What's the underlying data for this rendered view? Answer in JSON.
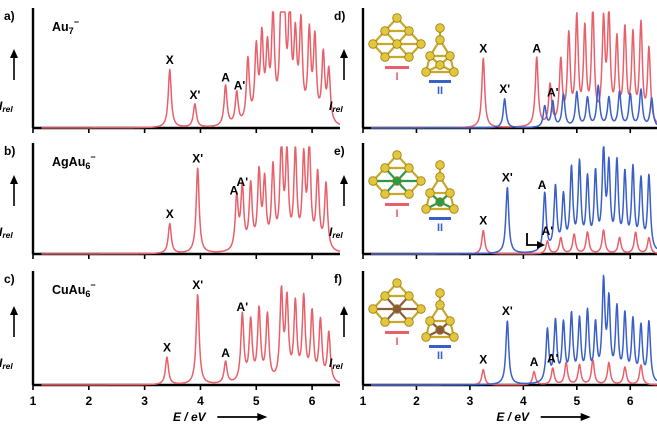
{
  "figure": {
    "x_axis_label": "E / eV",
    "x_ticks": [
      1,
      2,
      3,
      4,
      5,
      6
    ],
    "y_axis_label": "I",
    "y_axis_subscript": "rel",
    "colors": {
      "isomer_I": "#e8606a",
      "isomer_II": "#3a5fc8",
      "cluster_atom": "#e2c63c",
      "Ag_dopant": "#2a9a48",
      "Cu_dopant": "#8b5a3c"
    },
    "isomer_labels": [
      "I",
      "II"
    ]
  },
  "chart_data": [
    {
      "panel": "a)",
      "type": "line",
      "species": "Au",
      "species_sub": "7",
      "species_sup": "−",
      "xlim": [
        1,
        6.5
      ],
      "series": [
        {
          "color": "#e8606a",
          "peaks": [
            [
              3.45,
              0.5
            ],
            [
              3.9,
              0.2
            ],
            [
              4.45,
              0.35
            ],
            [
              4.65,
              0.28
            ],
            [
              4.85,
              0.55
            ],
            [
              5.0,
              0.62
            ],
            [
              5.1,
              0.7
            ],
            [
              5.2,
              0.58
            ],
            [
              5.3,
              0.88
            ],
            [
              5.45,
              0.98
            ],
            [
              5.5,
              0.85
            ],
            [
              5.6,
              0.92
            ],
            [
              5.7,
              0.68
            ],
            [
              5.8,
              0.82
            ],
            [
              5.95,
              0.75
            ],
            [
              6.05,
              0.7
            ],
            [
              6.2,
              0.58
            ],
            [
              6.3,
              0.45
            ]
          ]
        }
      ],
      "annotations": [
        {
          "text": "X",
          "x": 3.45
        },
        {
          "text": "X'",
          "x": 3.9
        },
        {
          "text": "A",
          "x": 4.45
        },
        {
          "text": "A'",
          "x": 4.7
        }
      ]
    },
    {
      "panel": "b)",
      "type": "line",
      "species": "AgAu",
      "species_sub": "6",
      "species_sup": "−",
      "xlim": [
        1,
        6.5
      ],
      "series": [
        {
          "color": "#e8606a",
          "peaks": [
            [
              3.45,
              0.28
            ],
            [
              3.95,
              0.8
            ],
            [
              4.65,
              0.5
            ],
            [
              4.75,
              0.58
            ],
            [
              4.9,
              0.6
            ],
            [
              5.05,
              0.7
            ],
            [
              5.15,
              0.62
            ],
            [
              5.3,
              0.75
            ],
            [
              5.45,
              0.95
            ],
            [
              5.55,
              0.85
            ],
            [
              5.7,
              0.9
            ],
            [
              5.85,
              0.82
            ],
            [
              5.95,
              0.95
            ],
            [
              6.1,
              0.7
            ],
            [
              6.25,
              0.62
            ]
          ]
        }
      ],
      "annotations": [
        {
          "text": "X",
          "x": 3.45
        },
        {
          "text": "X'",
          "x": 3.95
        },
        {
          "text": "A",
          "x": 4.6
        },
        {
          "text": "A'",
          "x": 4.75
        }
      ]
    },
    {
      "panel": "c)",
      "type": "line",
      "species": "CuAu",
      "species_sub": "6",
      "species_sup": "−",
      "xlim": [
        1,
        6.5
      ],
      "series": [
        {
          "color": "#e8606a",
          "peaks": [
            [
              3.4,
              0.25
            ],
            [
              3.95,
              0.82
            ],
            [
              4.45,
              0.2
            ],
            [
              4.75,
              0.62
            ],
            [
              4.9,
              0.55
            ],
            [
              5.05,
              0.65
            ],
            [
              5.2,
              0.6
            ],
            [
              5.45,
              0.8
            ],
            [
              5.55,
              0.72
            ],
            [
              5.7,
              0.7
            ],
            [
              5.85,
              0.75
            ],
            [
              6.0,
              0.62
            ],
            [
              6.15,
              0.55
            ],
            [
              6.3,
              0.45
            ]
          ]
        }
      ],
      "annotations": [
        {
          "text": "X",
          "x": 3.4
        },
        {
          "text": "X'",
          "x": 3.95
        },
        {
          "text": "A",
          "x": 4.45
        },
        {
          "text": "A'",
          "x": 4.75
        }
      ]
    },
    {
      "panel": "d)",
      "type": "line",
      "xlim": [
        1,
        6.5
      ],
      "series": [
        {
          "name": "I",
          "color": "#e8606a",
          "peaks": [
            [
              3.25,
              0.6
            ],
            [
              4.25,
              0.6
            ],
            [
              4.5,
              0.35
            ],
            [
              4.7,
              0.55
            ],
            [
              4.85,
              0.75
            ],
            [
              5.0,
              0.9
            ],
            [
              5.15,
              0.8
            ],
            [
              5.3,
              0.95
            ],
            [
              5.5,
              0.85
            ],
            [
              5.6,
              0.9
            ],
            [
              5.75,
              0.7
            ],
            [
              5.9,
              0.8
            ],
            [
              6.05,
              0.75
            ],
            [
              6.2,
              0.85
            ],
            [
              6.35,
              0.65
            ]
          ]
        },
        {
          "name": "II",
          "color": "#3a5fc8",
          "peaks": [
            [
              3.65,
              0.25
            ],
            [
              4.4,
              0.18
            ],
            [
              4.55,
              0.22
            ],
            [
              4.75,
              0.28
            ],
            [
              5.0,
              0.3
            ],
            [
              5.2,
              0.25
            ],
            [
              5.4,
              0.35
            ],
            [
              5.6,
              0.25
            ],
            [
              5.8,
              0.3
            ],
            [
              6.0,
              0.28
            ],
            [
              6.2,
              0.32
            ],
            [
              6.4,
              0.25
            ]
          ]
        }
      ],
      "annotations": [
        {
          "text": "X",
          "x": 3.25
        },
        {
          "text": "X'",
          "x": 3.65
        },
        {
          "text": "A",
          "x": 4.25
        },
        {
          "text": "A'",
          "x": 4.55
        }
      ]
    },
    {
      "panel": "e)",
      "type": "line",
      "xlim": [
        1,
        6.5
      ],
      "series": [
        {
          "name": "I",
          "color": "#e8606a",
          "peaks": [
            [
              3.25,
              0.22
            ],
            [
              4.45,
              0.12
            ],
            [
              4.7,
              0.15
            ],
            [
              4.95,
              0.18
            ],
            [
              5.2,
              0.2
            ],
            [
              5.5,
              0.22
            ],
            [
              5.8,
              0.15
            ],
            [
              6.1,
              0.2
            ],
            [
              6.35,
              0.15
            ]
          ]
        },
        {
          "name": "II",
          "color": "#3a5fc8",
          "peaks": [
            [
              3.7,
              0.62
            ],
            [
              4.4,
              0.55
            ],
            [
              4.6,
              0.6
            ],
            [
              4.75,
              0.5
            ],
            [
              4.9,
              0.75
            ],
            [
              5.05,
              0.8
            ],
            [
              5.2,
              0.65
            ],
            [
              5.35,
              0.7
            ],
            [
              5.5,
              0.9
            ],
            [
              5.6,
              0.75
            ],
            [
              5.75,
              0.8
            ],
            [
              5.9,
              0.7
            ],
            [
              6.05,
              0.75
            ],
            [
              6.2,
              0.65
            ],
            [
              6.35,
              0.7
            ]
          ]
        }
      ],
      "annotations": [
        {
          "text": "X",
          "x": 3.25
        },
        {
          "text": "X'",
          "x": 3.7
        },
        {
          "text": "A'",
          "x": 4.45
        },
        {
          "text": "A",
          "x": 4.35
        }
      ]
    },
    {
      "panel": "f)",
      "type": "line",
      "xlim": [
        1,
        6.5
      ],
      "series": [
        {
          "name": "I",
          "color": "#e8606a",
          "peaks": [
            [
              3.25,
              0.14
            ],
            [
              4.2,
              0.12
            ],
            [
              4.55,
              0.15
            ],
            [
              4.8,
              0.2
            ],
            [
              5.05,
              0.18
            ],
            [
              5.3,
              0.22
            ],
            [
              5.6,
              0.2
            ],
            [
              5.9,
              0.16
            ],
            [
              6.2,
              0.18
            ]
          ]
        },
        {
          "name": "II",
          "color": "#3a5fc8",
          "peaks": [
            [
              3.7,
              0.58
            ],
            [
              4.45,
              0.48
            ],
            [
              4.6,
              0.55
            ],
            [
              4.75,
              0.52
            ],
            [
              4.9,
              0.6
            ],
            [
              5.05,
              0.55
            ],
            [
              5.2,
              0.62
            ],
            [
              5.35,
              0.5
            ],
            [
              5.5,
              0.88
            ],
            [
              5.6,
              0.7
            ],
            [
              5.75,
              0.65
            ],
            [
              5.9,
              0.6
            ],
            [
              6.05,
              0.55
            ],
            [
              6.2,
              0.5
            ],
            [
              6.35,
              0.55
            ]
          ]
        }
      ],
      "annotations": [
        {
          "text": "X",
          "x": 3.25
        },
        {
          "text": "X'",
          "x": 3.7
        },
        {
          "text": "A",
          "x": 4.2
        },
        {
          "text": "A'",
          "x": 4.55
        }
      ]
    }
  ]
}
